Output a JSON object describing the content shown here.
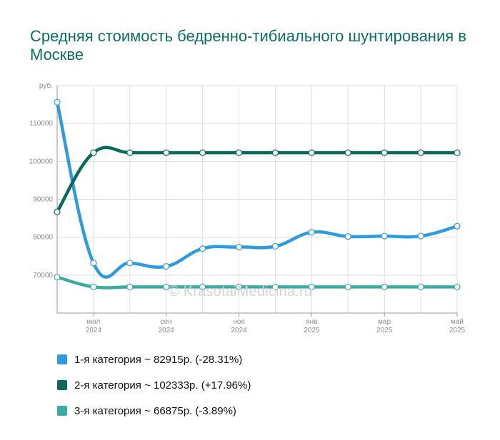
{
  "chart_data": {
    "type": "line",
    "title": "Средняя стоимость бедренно-тибиального шунтирования в Москве",
    "ylabel": "руб.",
    "ylim": [
      60000,
      120000
    ],
    "y_ticks": [
      {
        "value": 70000,
        "label": "70000"
      },
      {
        "value": 80000,
        "label": "80000"
      },
      {
        "value": 90000,
        "label": "90000"
      },
      {
        "value": 100000,
        "label": "100000"
      },
      {
        "value": 110000,
        "label": "110000"
      }
    ],
    "x_ticks": [
      {
        "index": 1,
        "month": "июл",
        "year": "2024"
      },
      {
        "index": 3,
        "month": "сен",
        "year": "2024"
      },
      {
        "index": 5,
        "month": "ноя",
        "year": "2024"
      },
      {
        "index": 7,
        "month": "янв",
        "year": "2025"
      },
      {
        "index": 9,
        "month": "мар",
        "year": "2025"
      },
      {
        "index": 11,
        "month": "май",
        "year": "2025"
      }
    ],
    "x": [
      "2024-06",
      "2024-07",
      "2024-08",
      "2024-09",
      "2024-10",
      "2024-11",
      "2024-12",
      "2025-01",
      "2025-02",
      "2025-03",
      "2025-04",
      "2025-05"
    ],
    "series": [
      {
        "name": "1-я категория",
        "color": "#2e9be0",
        "values": [
          115600,
          73200,
          73200,
          72300,
          77000,
          77400,
          77600,
          81300,
          80200,
          80300,
          80300,
          82900
        ]
      },
      {
        "name": "2-я категория",
        "color": "#0a6b5c",
        "values": [
          86700,
          102300,
          102300,
          102300,
          102300,
          102300,
          102300,
          102300,
          102300,
          102300,
          102300,
          102300
        ]
      },
      {
        "name": "3-я категория",
        "color": "#3aada1",
        "values": [
          69500,
          66900,
          66900,
          66900,
          66900,
          66900,
          66900,
          66900,
          66900,
          66900,
          66900,
          66900
        ]
      }
    ],
    "grid": true,
    "legend_position": "bottom-left"
  },
  "watermark": "© KrasotaiMedicina.ru",
  "legend": [
    {
      "label": "1-я категория ~ 82915р. (-28.31%)",
      "color": "#2e9be0"
    },
    {
      "label": "2-я категория ~ 102333р. (+17.96%)",
      "color": "#0a6b5c"
    },
    {
      "label": "3-я категория ~ 66875р. (-3.89%)",
      "color": "#3aada1"
    }
  ]
}
